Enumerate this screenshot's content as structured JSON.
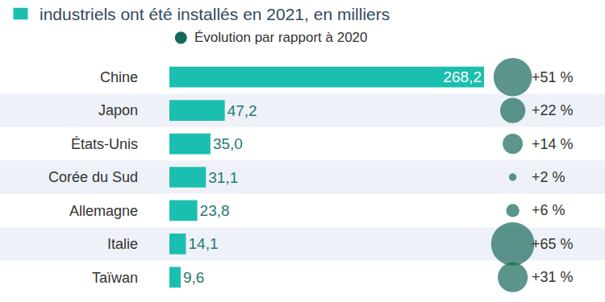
{
  "chart_data": {
    "type": "bar",
    "orientation": "horizontal",
    "title": "industriels ont été installés en 2021, en milliers",
    "categories": [
      "Chine",
      "Japon",
      "États-Unis",
      "Corée du Sud",
      "Allemagne",
      "Italie",
      "Taïwan"
    ],
    "values": [
      268.2,
      47.2,
      35.0,
      31.1,
      23.8,
      14.1,
      9.6
    ],
    "value_labels": [
      "268,2",
      "47,2",
      "35,0",
      "31,1",
      "23,8",
      "14,1",
      "9,6"
    ],
    "color": "#1bbfb0",
    "data_labels": true,
    "xlim": [
      0,
      268.2
    ],
    "tick_labels": "y",
    "grid": false,
    "changes": {
      "name": "Évolution par rapport à 2020",
      "color": "#17685a",
      "values": [
        51,
        22,
        14,
        2,
        6,
        65,
        31
      ],
      "value_labels": [
        "+51 %",
        "+22 %",
        "+14 %",
        "+2 %",
        "+6 %",
        "+65 %",
        "+31 %"
      ]
    }
  }
}
